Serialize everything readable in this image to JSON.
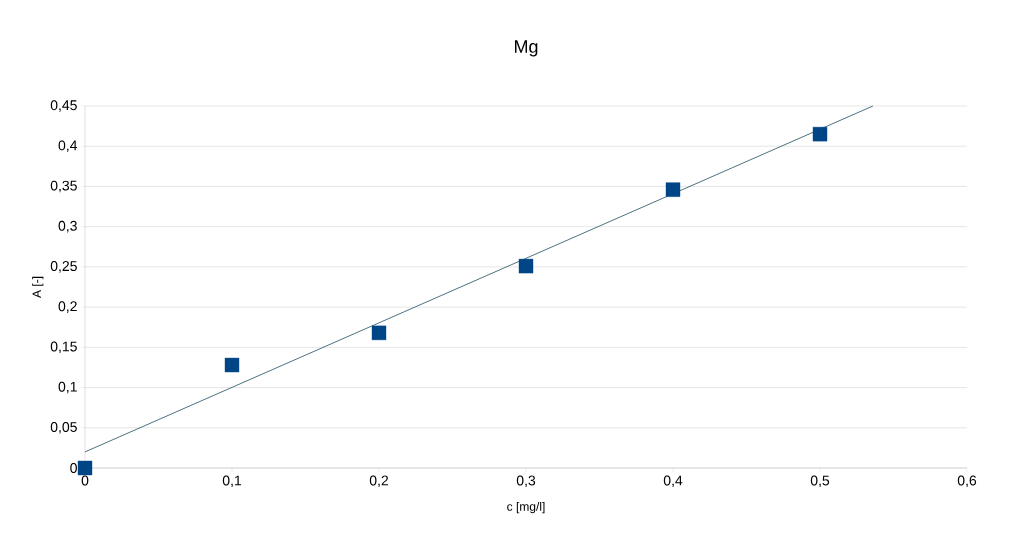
{
  "chart_data": {
    "type": "scatter",
    "title": "Mg",
    "xlabel": "c [mg/l]",
    "ylabel": "A [-]",
    "series": [
      {
        "marker": "square",
        "color": "#004586",
        "x": [
          0,
          0.1,
          0.2,
          0.3,
          0.4,
          0.5
        ],
        "values": [
          0,
          0.128,
          0.168,
          0.251,
          0.346,
          0.415
        ]
      },
      {
        "type": "line",
        "marker": "none",
        "color": "#1f4e5f",
        "x": [
          0,
          0.536
        ],
        "values": [
          0.02,
          0.45
        ]
      }
    ],
    "grid": "y",
    "xlim": [
      0,
      0.6
    ],
    "ylim": [
      0,
      0.45
    ],
    "xticks": [
      0,
      {
        "value": 0.1,
        "label": "0,1"
      },
      {
        "value": 0.2,
        "label": "0,2"
      },
      {
        "value": 0.3,
        "label": "0,3"
      },
      {
        "value": 0.4,
        "label": "0,4"
      },
      {
        "value": 0.5,
        "label": "0,5"
      },
      {
        "value": 0.6,
        "label": "0,6"
      }
    ],
    "yticks": [
      0,
      {
        "value": 0.05,
        "label": "0,05"
      },
      {
        "value": 0.1,
        "label": "0,1"
      },
      {
        "value": 0.15,
        "label": "0,15"
      },
      {
        "value": 0.2,
        "label": "0,2"
      },
      {
        "value": 0.25,
        "label": "0,25"
      },
      {
        "value": 0.3,
        "label": "0,3"
      },
      {
        "value": 0.35,
        "label": "0,35"
      },
      {
        "value": 0.4,
        "label": "0,4"
      },
      {
        "value": 0.45,
        "label": "0,45"
      }
    ]
  }
}
